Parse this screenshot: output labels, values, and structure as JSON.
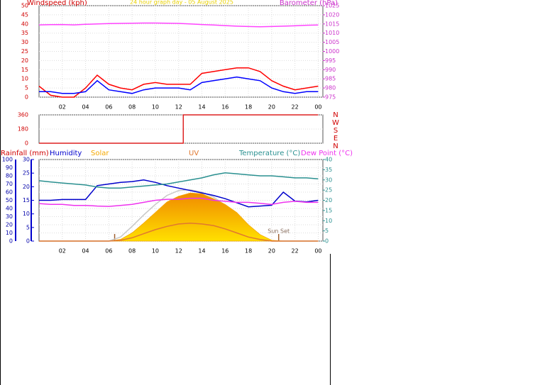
{
  "chart_data": [
    {
      "type": "line",
      "title": "24 hour graph day - 05 August 2025",
      "ylabel": "Windspeed (kph)",
      "y2label": "Barometer (hPa)",
      "x": [
        0,
        1,
        2,
        3,
        4,
        5,
        6,
        7,
        8,
        9,
        10,
        11,
        12,
        13,
        14,
        15,
        16,
        17,
        18,
        19,
        20,
        21,
        22,
        23,
        24
      ],
      "xlim": [
        0,
        24.4
      ],
      "xticks": [
        {
          "value": 2,
          "label": "02"
        },
        {
          "value": 4,
          "label": "04"
        },
        {
          "value": 6,
          "label": "06"
        },
        {
          "value": 8,
          "label": "08"
        },
        10,
        12,
        14,
        16,
        18,
        20,
        22,
        {
          "value": 24,
          "label": "00"
        }
      ],
      "ylim": [
        0,
        50
      ],
      "yticks": [
        0,
        5,
        10,
        15,
        20,
        25,
        30,
        35,
        40,
        45,
        50
      ],
      "y2lim": [
        975,
        1025
      ],
      "y2ticks": [
        975,
        980,
        985,
        990,
        995,
        1000,
        1005,
        1010,
        1015,
        1020,
        1025
      ],
      "grid": true,
      "series": [
        {
          "color": "#ff0000",
          "values": [
            6,
            1,
            0,
            0,
            5,
            12,
            7,
            5,
            4,
            7,
            8,
            7,
            7,
            7,
            13,
            14,
            15,
            16,
            16,
            14,
            9,
            6,
            4,
            5,
            6
          ]
        },
        {
          "color": "#0000ff",
          "values": [
            3,
            3,
            2,
            2,
            3,
            9,
            4,
            3,
            2,
            4,
            5,
            5,
            5,
            4,
            8,
            9,
            10,
            11,
            10,
            9,
            5,
            3,
            2,
            3,
            3
          ]
        },
        {
          "color": "#ff44ff",
          "axis": "y2",
          "values": [
            1014.5,
            1014.6,
            1014.7,
            1014.5,
            1014.8,
            1015,
            1015.2,
            1015.3,
            1015.4,
            1015.5,
            1015.5,
            1015.4,
            1015.3,
            1015,
            1014.7,
            1014.4,
            1014.1,
            1013.8,
            1013.6,
            1013.5,
            1013.6,
            1013.8,
            1014,
            1014.3,
            1014.4
          ]
        }
      ]
    },
    {
      "type": "line",
      "x": [
        0,
        12.4,
        12.4,
        24
      ],
      "xlim": [
        0,
        24.4
      ],
      "ylim": [
        0,
        360
      ],
      "yticks": [
        0,
        180,
        360
      ],
      "compass": [
        "N",
        "W",
        "S",
        "E",
        "N"
      ],
      "grid": true,
      "series": [
        {
          "color": "#dd2222",
          "values": [
            0,
            0,
            360,
            360
          ]
        }
      ]
    },
    {
      "type": "line",
      "x": [
        0,
        1,
        2,
        3,
        4,
        5,
        6,
        7,
        8,
        9,
        10,
        11,
        12,
        13,
        14,
        15,
        16,
        17,
        18,
        19,
        20,
        21,
        22,
        23,
        24
      ],
      "xlim": [
        0,
        24.4
      ],
      "xticks": [
        {
          "value": 2,
          "label": "02"
        },
        {
          "value": 4,
          "label": "04"
        },
        {
          "value": 6,
          "label": "06"
        },
        {
          "value": 8,
          "label": "08"
        },
        10,
        12,
        14,
        16,
        18,
        20,
        22,
        {
          "value": 24,
          "label": "00"
        }
      ],
      "rain_label": "Rainfall (mm)",
      "rainlim": [
        0,
        30
      ],
      "rainticks": [
        0,
        5,
        10,
        15,
        20,
        25,
        30
      ],
      "ylim": [
        0,
        100
      ],
      "yticks": [
        0,
        10,
        20,
        30,
        40,
        50,
        60,
        70,
        80,
        90,
        100
      ],
      "y2lim": [
        0,
        40
      ],
      "y2ticks": [
        0,
        5,
        10,
        15,
        20,
        25,
        30,
        35,
        40
      ],
      "grid": true,
      "annotations": [
        {
          "text": "Sun Set",
          "x": 20.6
        }
      ],
      "sunrise_x": 6.5,
      "series": [
        {
          "color": "#c8c8c8",
          "values": [
            0,
            0,
            0,
            0,
            0,
            0,
            0,
            5,
            18,
            32,
            45,
            56,
            62,
            63,
            60,
            54,
            44,
            32,
            18,
            6,
            0,
            0,
            0,
            0,
            0
          ]
        },
        {
          "name": "Solar",
          "color": "#f5a800",
          "fill": true,
          "values": [
            0,
            0,
            0,
            0,
            0,
            0,
            0,
            2,
            10,
            22,
            35,
            48,
            55,
            59,
            58,
            52,
            45,
            35,
            20,
            8,
            1,
            0,
            0,
            0,
            0
          ]
        },
        {
          "name": "UV",
          "color": "#e07830",
          "values": [
            0,
            0,
            0,
            0,
            0,
            0,
            0,
            1,
            4,
            9,
            14,
            18,
            21,
            22,
            21,
            19,
            15,
            10,
            5,
            2,
            0,
            0,
            0,
            0,
            0
          ]
        },
        {
          "name": "Humidity",
          "color": "#0000cc",
          "values": [
            50,
            50,
            51,
            51,
            51,
            68,
            70,
            72,
            73,
            75,
            72,
            68,
            65,
            62,
            59,
            56,
            52,
            47,
            42,
            43,
            44,
            60,
            49,
            48,
            50
          ]
        },
        {
          "name": "Temperature (°C)",
          "color": "#2a9090",
          "axis": "y2",
          "values": [
            29.6,
            29,
            28.5,
            28,
            27.5,
            26.5,
            26,
            26,
            26.5,
            27,
            27.5,
            28,
            29,
            30,
            31,
            32.5,
            33.5,
            33,
            32.5,
            32,
            32,
            31.5,
            31,
            31,
            30.5
          ]
        },
        {
          "name": "Dew Point (°C)",
          "color": "#ee33ee",
          "axis": "y2",
          "values": [
            18.4,
            18,
            18,
            17.5,
            17.5,
            17.2,
            17,
            17.5,
            18,
            19,
            20,
            20.5,
            20.5,
            21,
            21,
            20,
            19.5,
            19,
            19,
            18.5,
            18,
            19,
            19.5,
            19,
            19
          ]
        }
      ]
    }
  ]
}
